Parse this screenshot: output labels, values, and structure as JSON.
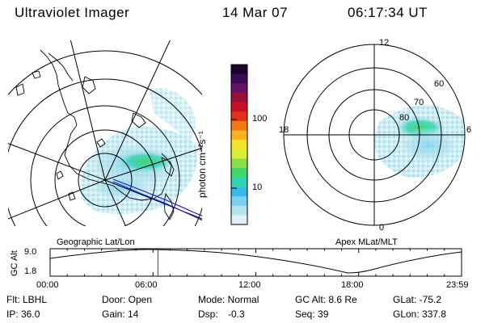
{
  "header": {
    "instrument": "Ultraviolet Imager",
    "date": "14 Mar 07",
    "time": "06:17:34 UT"
  },
  "colorbar": {
    "unit_label": "photon cm⁻²s⁻¹",
    "ticks": [
      "100",
      "10"
    ],
    "colors": [
      "#1b0030",
      "#3b0a58",
      "#6a1060",
      "#9a1030",
      "#c8102a",
      "#e3341a",
      "#f07a10",
      "#f5b21a",
      "#f7e32c",
      "#d7f035",
      "#86e046",
      "#3fd66a",
      "#2ed2b5",
      "#3ab8e8",
      "#78d0ee",
      "#b2e2ec",
      "#dff0f2"
    ]
  },
  "geo_panel": {
    "label": "Geographic Lat/Lon"
  },
  "polar_panel": {
    "label": "Apex MLat/MLT",
    "mlt_labels": [
      "12",
      "18",
      "6",
      "0"
    ],
    "lat_labels": [
      "60",
      "70",
      "80"
    ]
  },
  "altitude_plot": {
    "y_label": "GC Alt",
    "y_ticks": [
      "9.0",
      "1.8"
    ],
    "x_ticks": [
      "00:00",
      "06:00",
      "12:00",
      "18:00",
      "23:59"
    ],
    "current_time_marker_hour": 6.29
  },
  "status": {
    "flt": "Flt: LBHL",
    "ip": "IP: 36.0",
    "door": "Door: Open",
    "gain": "Gain: 14",
    "mode": "Mode: Normal",
    "dsp_label": "Dsp:",
    "dsp_value": "-0.3",
    "gc_alt": "GC Alt: 8.6 Re",
    "seq": "Seq: 39",
    "glat": "GLat: -75.2",
    "glon": "GLon: 337.8"
  }
}
